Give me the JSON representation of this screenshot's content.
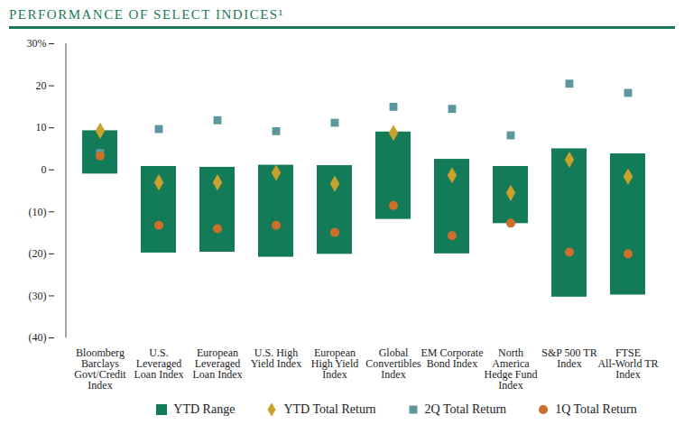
{
  "chart_data": {
    "type": "range",
    "title": "PERFORMANCE OF SELECT INDICES¹",
    "categories": [
      "Bloomberg Barclays Govt/Credit Index",
      "U.S. Leveraged Loan Index",
      "European Leveraged Loan Index",
      "U.S. High Yield Index",
      "European High Yield Index",
      "Global Convertibles Index",
      "EM Corporate Bond Index",
      "North America Hedge Fund Index",
      "S&P 500 TR Index",
      "FTSE All-World TR Index"
    ],
    "series": [
      {
        "name": "YTD Range",
        "type": "bar",
        "color": "#137b58",
        "low": [
          -1,
          -19.8,
          -19.6,
          -20.8,
          -20.1,
          -11.8,
          -20,
          -12.8,
          -30.3,
          -29.8
        ],
        "high": [
          9.3,
          0.8,
          0.6,
          1.1,
          1,
          9,
          2.5,
          0.8,
          5,
          3.8
        ]
      },
      {
        "name": "YTD Total Return",
        "type": "scatter",
        "marker": "diamond",
        "color": "#c9a22e",
        "values": [
          9.3,
          -3,
          -3,
          -0.7,
          -3.3,
          8.8,
          -1.3,
          -5.5,
          2.4,
          -1.6
        ]
      },
      {
        "name": "2Q Total Return",
        "type": "scatter",
        "marker": "square",
        "color": "#5b979c",
        "values": [
          4,
          9.7,
          11.8,
          9.2,
          11.2,
          15,
          14.5,
          8.2,
          20.5,
          18.3
        ]
      },
      {
        "name": "1Q Total Return",
        "type": "scatter",
        "marker": "circle",
        "color": "#cc6f2c",
        "values": [
          3.3,
          -13.2,
          -14,
          -13.2,
          -14.9,
          -8.5,
          -15.7,
          -12.7,
          -19.6,
          -20
        ]
      }
    ],
    "ylim": [
      -40,
      30
    ],
    "yticks": [
      {
        "value": 30,
        "label": "30%"
      },
      20,
      10,
      0,
      {
        "value": -10,
        "label": "(10)"
      },
      {
        "value": -20,
        "label": "(20)"
      },
      {
        "value": -30,
        "label": "(30)"
      },
      {
        "value": -40,
        "label": "(40)"
      }
    ],
    "grid": false,
    "legend": "bottom"
  }
}
